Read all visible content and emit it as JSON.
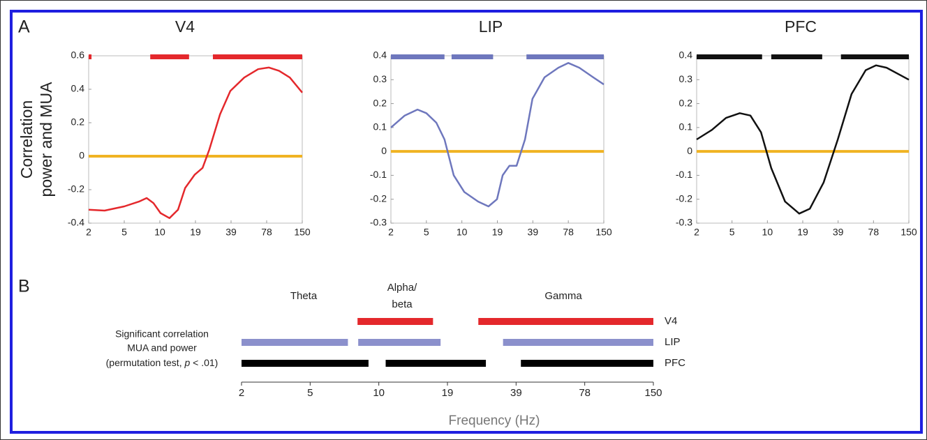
{
  "panel_labels": [
    "A",
    "B"
  ],
  "chart_data": [
    {
      "type": "line",
      "title": "V4",
      "color": "#e4282c",
      "y_label": [
        "Correlation",
        "power and MUA"
      ],
      "x": [
        0,
        0.45,
        1,
        1.43,
        1.63,
        1.82,
        2.02,
        2.27,
        2.51,
        2.71,
        2.98,
        3.2,
        3.39,
        3.69,
        3.98,
        4.37,
        4.76,
        5.06,
        5.35,
        5.65,
        6
      ],
      "values": [
        -0.32,
        -0.325,
        -0.3,
        -0.27,
        -0.25,
        -0.28,
        -0.34,
        -0.37,
        -0.32,
        -0.19,
        -0.11,
        -0.07,
        0.04,
        0.25,
        0.39,
        0.47,
        0.52,
        0.53,
        0.51,
        0.47,
        0.38
      ],
      "significance_bars": [
        [
          0,
          0.08
        ],
        [
          1.73,
          2.82
        ],
        [
          3.49,
          6
        ]
      ],
      "reference_line": {
        "value": 0,
        "color": "#f0b323"
      },
      "xlim": [
        0,
        6
      ],
      "xticks": [
        {
          "value": 0,
          "label": "2"
        },
        {
          "value": 1,
          "label": "5"
        },
        {
          "value": 2,
          "label": "10"
        },
        {
          "value": 3,
          "label": "19"
        },
        {
          "value": 4,
          "label": "39"
        },
        {
          "value": 5,
          "label": "78"
        },
        {
          "value": 6,
          "label": "150"
        }
      ],
      "ylim": [
        -0.4,
        0.6
      ],
      "yticks": [
        -0.4,
        -0.2,
        0,
        0.2,
        0.4,
        0.6
      ]
    },
    {
      "type": "line",
      "title": "LIP",
      "color": "#6e77bd",
      "x": [
        0,
        0.39,
        0.75,
        1,
        1.28,
        1.51,
        1.77,
        2.07,
        2.46,
        2.75,
        2.99,
        3.15,
        3.34,
        3.54,
        3.78,
        3.99,
        4.33,
        4.72,
        5,
        5.31,
        5.7,
        6
      ],
      "values": [
        0.1,
        0.15,
        0.175,
        0.16,
        0.12,
        0.05,
        -0.1,
        -0.17,
        -0.21,
        -0.23,
        -0.2,
        -0.1,
        -0.06,
        -0.06,
        0.05,
        0.22,
        0.31,
        0.35,
        0.37,
        0.35,
        0.31,
        0.28
      ],
      "significance_bars": [
        [
          0,
          1.51
        ],
        [
          1.71,
          2.88
        ],
        [
          3.82,
          6
        ]
      ],
      "reference_line": {
        "value": 0,
        "color": "#f0b323"
      },
      "xlim": [
        0,
        6
      ],
      "xticks": [
        {
          "value": 0,
          "label": "2"
        },
        {
          "value": 1,
          "label": "5"
        },
        {
          "value": 2,
          "label": "10"
        },
        {
          "value": 3,
          "label": "19"
        },
        {
          "value": 4,
          "label": "39"
        },
        {
          "value": 5,
          "label": "78"
        },
        {
          "value": 6,
          "label": "150"
        }
      ],
      "ylim": [
        -0.3,
        0.4
      ],
      "yticks": [
        -0.3,
        -0.2,
        -0.1,
        0,
        0.1,
        0.2,
        0.3,
        0.4
      ]
    },
    {
      "type": "line",
      "title": "PFC",
      "color": "#111111",
      "x": [
        0,
        0.43,
        0.83,
        1.22,
        1.52,
        1.82,
        2.11,
        2.5,
        2.9,
        3.2,
        3.59,
        3.99,
        4.38,
        4.78,
        5.07,
        5.37,
        6
      ],
      "values": [
        0.05,
        0.09,
        0.14,
        0.16,
        0.15,
        0.08,
        -0.07,
        -0.21,
        -0.26,
        -0.24,
        -0.13,
        0.05,
        0.24,
        0.34,
        0.36,
        0.35,
        0.3
      ],
      "significance_bars": [
        [
          0,
          1.85
        ],
        [
          2.11,
          3.55
        ],
        [
          4.08,
          6
        ]
      ],
      "reference_line": {
        "value": 0,
        "color": "#f0b323"
      },
      "xlim": [
        0,
        6
      ],
      "xticks": [
        {
          "value": 0,
          "label": "2"
        },
        {
          "value": 1,
          "label": "5"
        },
        {
          "value": 2,
          "label": "10"
        },
        {
          "value": 3,
          "label": "19"
        },
        {
          "value": 4,
          "label": "39"
        },
        {
          "value": 5,
          "label": "78"
        },
        {
          "value": 6,
          "label": "150"
        }
      ],
      "ylim": [
        -0.3,
        0.4
      ],
      "yticks": [
        -0.3,
        -0.2,
        -0.1,
        0,
        0.1,
        0.2,
        0.3,
        0.4
      ]
    },
    {
      "type": "timeline",
      "bands": [
        {
          "lines": [
            "Theta"
          ]
        },
        {
          "lines": [
            "Alpha/",
            "beta"
          ]
        },
        {
          "lines": [
            "Gamma"
          ]
        }
      ],
      "note": [
        "Significant correlation",
        "MUA and power",
        {
          "before": "(permutation test, ",
          "italic": "p",
          "after": " < .01)"
        }
      ],
      "rows": [
        {
          "name": "V4",
          "color": "#e4282c",
          "intervals": [
            [
              1.69,
              2.79
            ],
            [
              3.45,
              6
            ]
          ]
        },
        {
          "name": "LIP",
          "color": "#8b90cc",
          "intervals": [
            [
              0,
              1.55
            ],
            [
              1.7,
              2.9
            ],
            [
              3.81,
              6
            ]
          ]
        },
        {
          "name": "PFC",
          "color": "#000000",
          "intervals": [
            [
              0,
              1.85
            ],
            [
              2.1,
              3.56
            ],
            [
              4.07,
              6
            ]
          ]
        }
      ],
      "x_label": "Frequency (Hz)",
      "xlim": [
        0,
        6
      ],
      "xticks": [
        {
          "value": 0,
          "label": "2"
        },
        {
          "value": 1,
          "label": "5"
        },
        {
          "value": 2,
          "label": "10"
        },
        {
          "value": 3,
          "label": "19"
        },
        {
          "value": 4,
          "label": "39"
        },
        {
          "value": 5,
          "label": "78"
        },
        {
          "value": 6,
          "label": "150"
        }
      ]
    }
  ]
}
